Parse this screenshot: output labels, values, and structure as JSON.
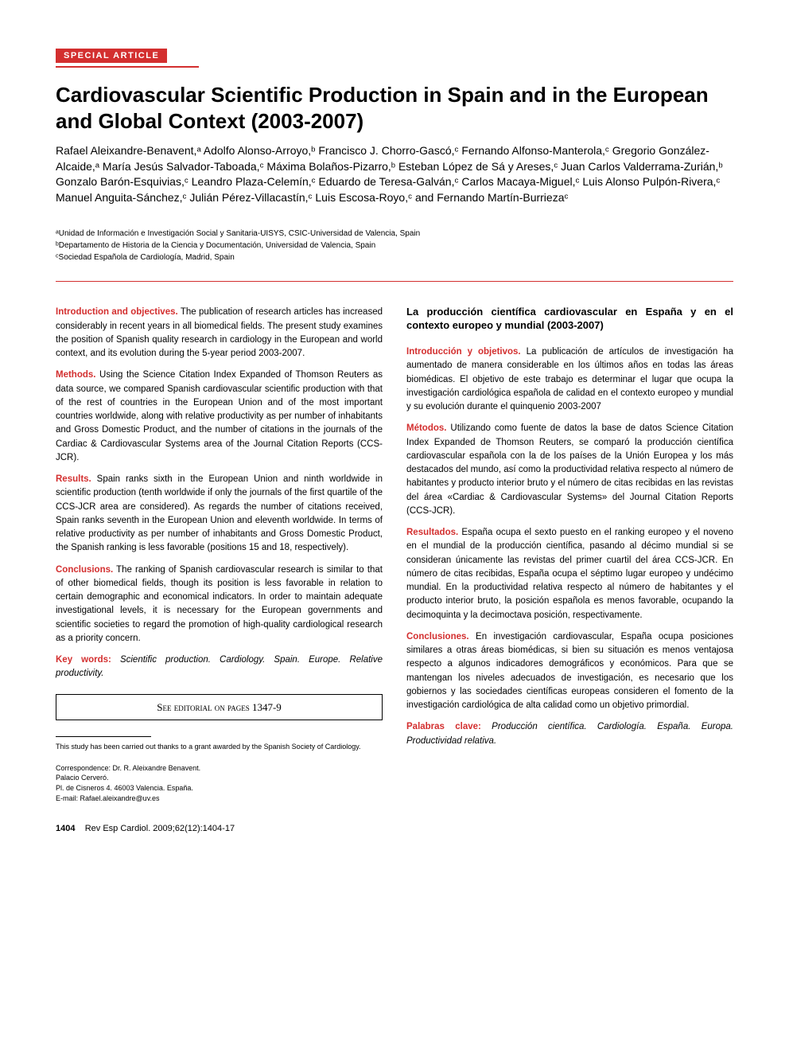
{
  "section_label": "SPECIAL ARTICLE",
  "title": "Cardiovascular Scientific Production in Spain and in the European and Global Context (2003-2007)",
  "authors_html": "Rafael Aleixandre-Benavent,ᵃ Adolfo Alonso-Arroyo,ᵇ Francisco J. Chorro-Gascó,ᶜ Fernando Alfonso-Manterola,ᶜ Gregorio González-Alcaide,ᵃ María Jesús Salvador-Taboada,ᶜ Máxima Bolaños-Pizarro,ᵇ Esteban López de Sá y Areses,ᶜ Juan Carlos Valderrama-Zurián,ᵇ Gonzalo Barón-Esquivias,ᶜ Leandro Plaza-Celemín,ᶜ Eduardo de Teresa-Galván,ᶜ Carlos Macaya-Miguel,ᶜ Luis Alonso Pulpón-Rivera,ᶜ Manuel Anguita-Sánchez,ᶜ Julián Pérez-Villacastín,ᶜ Luis Escosa-Royo,ᶜ and Fernando Martín-Burriezaᶜ",
  "affiliations": [
    "ᵃUnidad de Información e Investigación Social y Sanitaria-UISYS, CSIC-Universidad de Valencia, Spain",
    "ᵇDepartamento de Historia de la Ciencia y Documentación, Universidad de Valencia, Spain",
    "ᶜSociedad Española de Cardiología, Madrid, Spain"
  ],
  "abstract_en": {
    "intro": {
      "label": "Introduction and objectives.",
      "text": " The publication of research articles has increased considerably in recent years in all biomedical fields. The present study examines the position of Spanish quality research in cardiology in the European and world context, and its evolution during the 5-year period 2003-2007."
    },
    "methods": {
      "label": "Methods.",
      "text": " Using the Science Citation Index Expanded of Thomson Reuters as data source, we compared Spanish cardiovascular scientific production with that of the rest of countries in the European Union and of the most important countries worldwide, along with relative productivity as per number of inhabitants and Gross Domestic Product, and the number of citations in the journals of the Cardiac & Cardiovascular Systems area of the Journal Citation Reports (CCS-JCR)."
    },
    "results": {
      "label": "Results.",
      "text": " Spain ranks sixth in the European Union and ninth worldwide in scientific production (tenth worldwide if only the journals of the first quartile of the CCS-JCR area are considered). As regards the number of citations received, Spain ranks seventh in the European Union and eleventh worldwide. In terms of relative productivity as per number of inhabitants and Gross Domestic Product, the Spanish ranking is less favorable (positions 15 and 18, respectively)."
    },
    "conclusions": {
      "label": "Conclusions.",
      "text": " The ranking of Spanish cardiovascular research is similar to that of other biomedical fields, though its position is less favorable in relation to certain demographic and economical indicators. In order to maintain adequate investigational levels, it is necessary for the European governments and scientific societies to regard the promotion of high-quality cardiological research as a priority concern."
    },
    "keywords": {
      "label": "Key words:",
      "text": " Scientific production. Cardiology. Spain. Europe. Relative productivity."
    }
  },
  "editorial_box": "See editorial on pages 1347-9",
  "footnote": "This study has been carried out thanks to a grant awarded by the Spanish Society of Cardiology.",
  "correspondence": [
    "Correspondence: Dr. R. Aleixandre Benavent.",
    "Palacio Cerveró.",
    "Pl. de Cisneros 4. 46003 Valencia. España.",
    "E-mail: Rafael.aleixandre@uv.es"
  ],
  "page_footer": {
    "page": "1404",
    "citation": "Rev Esp Cardiol. 2009;62(12):1404-17"
  },
  "spanish_title": "La producción científica cardiovascular en España y en el contexto europeo y mundial (2003-2007)",
  "abstract_es": {
    "intro": {
      "label": "Introducción y objetivos.",
      "text": " La publicación de artículos de investigación ha aumentado de manera considerable en los últimos años en todas las áreas biomédicas. El objetivo de este trabajo es determinar el lugar que ocupa la investigación cardiológica española de calidad en el contexto europeo y mundial y su evolución durante el quinquenio 2003-2007"
    },
    "methods": {
      "label": "Métodos.",
      "text": " Utilizando como fuente de datos la base de datos Science Citation Index Expanded de Thomson Reuters, se comparó la producción científica cardiovascular española con la de los países de la Unión Europea y los más destacados del mundo, así como la productividad relativa respecto al número de habitantes y producto interior bruto y el número de citas recibidas en las revistas del área «Cardiac & Cardiovascular Systems» del Journal Citation Reports (CCS-JCR)."
    },
    "results": {
      "label": "Resultados.",
      "text": " España ocupa el sexto puesto en el ranking europeo y el noveno en el mundial de la producción científica, pasando al décimo mundial si se consideran únicamente las revistas del primer cuartil del área CCS-JCR. En número de citas recibidas, España ocupa el séptimo lugar europeo y undécimo mundial. En la productividad relativa respecto al número de habitantes y el producto interior bruto, la posición española es menos favorable, ocupando la decimoquinta y la decimoctava posición, respectivamente."
    },
    "conclusions": {
      "label": "Conclusiones.",
      "text": " En investigación cardiovascular, España ocupa posiciones similares a otras áreas biomédicas, si bien su situación es menos ventajosa respecto a algunos indicadores demográficos y económicos. Para que se mantengan los niveles adecuados de investigación, es necesario que los gobiernos y las sociedades científicas europeas consideren el fomento de la investigación cardiológica de alta calidad como un objetivo primordial."
    },
    "keywords": {
      "label": "Palabras clave:",
      "text": " Producción científica. Cardiología. España. Europa. Productividad relativa."
    }
  },
  "colors": {
    "accent_red": "#d32f2f",
    "text": "#000000",
    "background": "#ffffff"
  }
}
